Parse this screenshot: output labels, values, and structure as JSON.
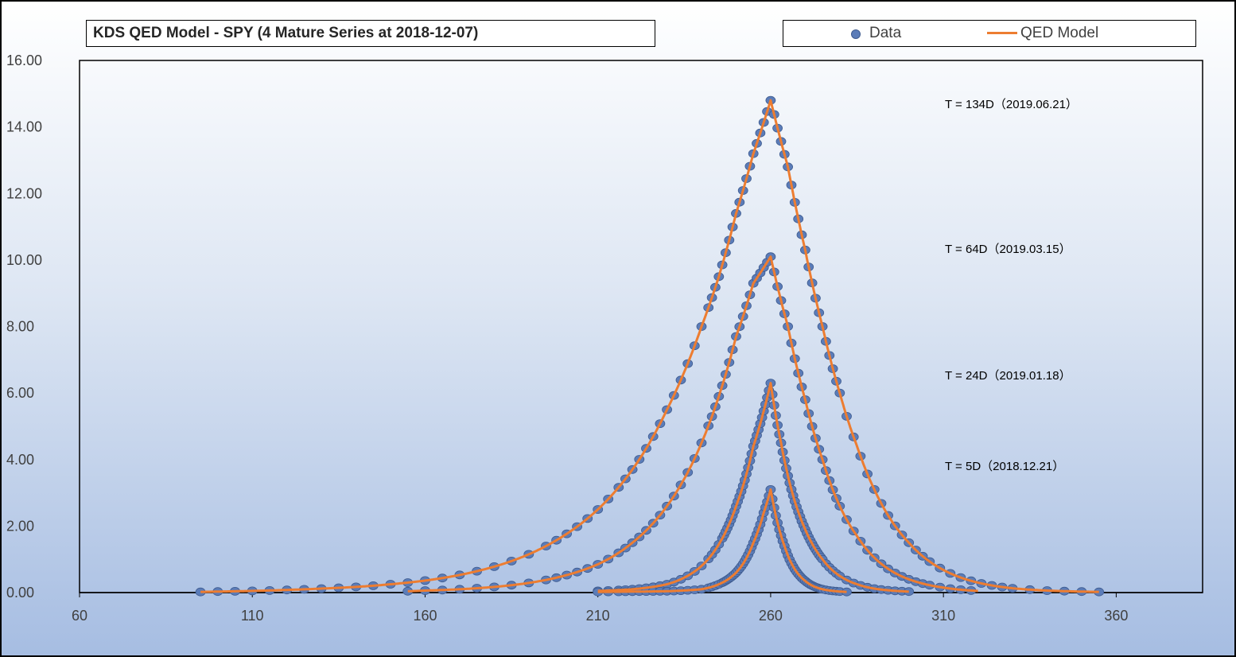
{
  "colors": {
    "data": "#5b7cb8",
    "model": "#ed7d31"
  },
  "chart_data": {
    "type": "scatter",
    "title": "KDS QED Model - SPY (4 Mature Series at 2018-12-07)",
    "xlim": [
      60,
      385
    ],
    "ylim": [
      0,
      16
    ],
    "xticks": [
      "60",
      "110",
      "160",
      "210",
      "260",
      "310",
      "360"
    ],
    "yticks": [
      "0.00",
      "2.00",
      "4.00",
      "6.00",
      "8.00",
      "10.00",
      "12.00",
      "14.00",
      "16.00"
    ],
    "legend": {
      "position": "top-right",
      "entries": [
        "Data",
        "QED Model"
      ]
    },
    "grid": false,
    "series": [
      {
        "label": "T = 134D（2019.06.21）",
        "peak": {
          "x": 260,
          "y": 14.8
        },
        "data_x_range": [
          95,
          355
        ],
        "points": [
          [
            95,
            0.02
          ],
          [
            100,
            0.03
          ],
          [
            110,
            0.05
          ],
          [
            120,
            0.08
          ],
          [
            130,
            0.12
          ],
          [
            140,
            0.17
          ],
          [
            150,
            0.25
          ],
          [
            160,
            0.36
          ],
          [
            170,
            0.53
          ],
          [
            180,
            0.78
          ],
          [
            190,
            1.15
          ],
          [
            195,
            1.4
          ],
          [
            200,
            1.7
          ],
          [
            210,
            2.5
          ],
          [
            220,
            3.7
          ],
          [
            230,
            5.5
          ],
          [
            240,
            8.0
          ],
          [
            245,
            9.5
          ],
          [
            250,
            11.4
          ],
          [
            255,
            13.2
          ],
          [
            260,
            14.8
          ],
          [
            265,
            12.8
          ],
          [
            270,
            10.3
          ],
          [
            275,
            8.0
          ],
          [
            280,
            6.0
          ],
          [
            285,
            4.4
          ],
          [
            290,
            3.1
          ],
          [
            300,
            1.5
          ],
          [
            310,
            0.68
          ],
          [
            320,
            0.3
          ],
          [
            330,
            0.13
          ],
          [
            340,
            0.06
          ],
          [
            350,
            0.03
          ],
          [
            355,
            0.02
          ]
        ]
      },
      {
        "label": "T = 64D（2019.03.15）",
        "peak": {
          "x": 260,
          "y": 10.1
        },
        "data_x_range": [
          155,
          320
        ],
        "points": [
          [
            155,
            0.04
          ],
          [
            160,
            0.06
          ],
          [
            170,
            0.1
          ],
          [
            180,
            0.17
          ],
          [
            190,
            0.29
          ],
          [
            200,
            0.5
          ],
          [
            210,
            0.85
          ],
          [
            220,
            1.5
          ],
          [
            230,
            2.6
          ],
          [
            240,
            4.5
          ],
          [
            245,
            5.9
          ],
          [
            250,
            7.7
          ],
          [
            255,
            9.3
          ],
          [
            260,
            10.1
          ],
          [
            265,
            8.0
          ],
          [
            270,
            5.8
          ],
          [
            275,
            4.0
          ],
          [
            280,
            2.6
          ],
          [
            285,
            1.7
          ],
          [
            290,
            1.05
          ],
          [
            300,
            0.4
          ],
          [
            310,
            0.15
          ],
          [
            320,
            0.05
          ]
        ]
      },
      {
        "label": "T = 24D（2019.01.18）",
        "peak": {
          "x": 260,
          "y": 6.3
        },
        "data_x_range": [
          210,
          300
        ],
        "points": [
          [
            210,
            0.05
          ],
          [
            220,
            0.1
          ],
          [
            230,
            0.25
          ],
          [
            235,
            0.45
          ],
          [
            240,
            0.8
          ],
          [
            245,
            1.45
          ],
          [
            250,
            2.6
          ],
          [
            255,
            4.4
          ],
          [
            260,
            6.3
          ],
          [
            263,
            4.5
          ],
          [
            266,
            3.1
          ],
          [
            270,
            1.9
          ],
          [
            275,
            1.0
          ],
          [
            280,
            0.5
          ],
          [
            285,
            0.25
          ],
          [
            290,
            0.12
          ],
          [
            300,
            0.03
          ]
        ]
      },
      {
        "label": "T = 5D（2018.12.21）",
        "peak": {
          "x": 260,
          "y": 3.1
        },
        "data_x_range": [
          210,
          282
        ],
        "points": [
          [
            210,
            0.02
          ],
          [
            230,
            0.04
          ],
          [
            240,
            0.1
          ],
          [
            245,
            0.25
          ],
          [
            250,
            0.6
          ],
          [
            255,
            1.5
          ],
          [
            258,
            2.4
          ],
          [
            260,
            3.1
          ],
          [
            262,
            2.1
          ],
          [
            264,
            1.4
          ],
          [
            267,
            0.7
          ],
          [
            270,
            0.35
          ],
          [
            275,
            0.1
          ],
          [
            282,
            0.02
          ]
        ]
      }
    ]
  }
}
